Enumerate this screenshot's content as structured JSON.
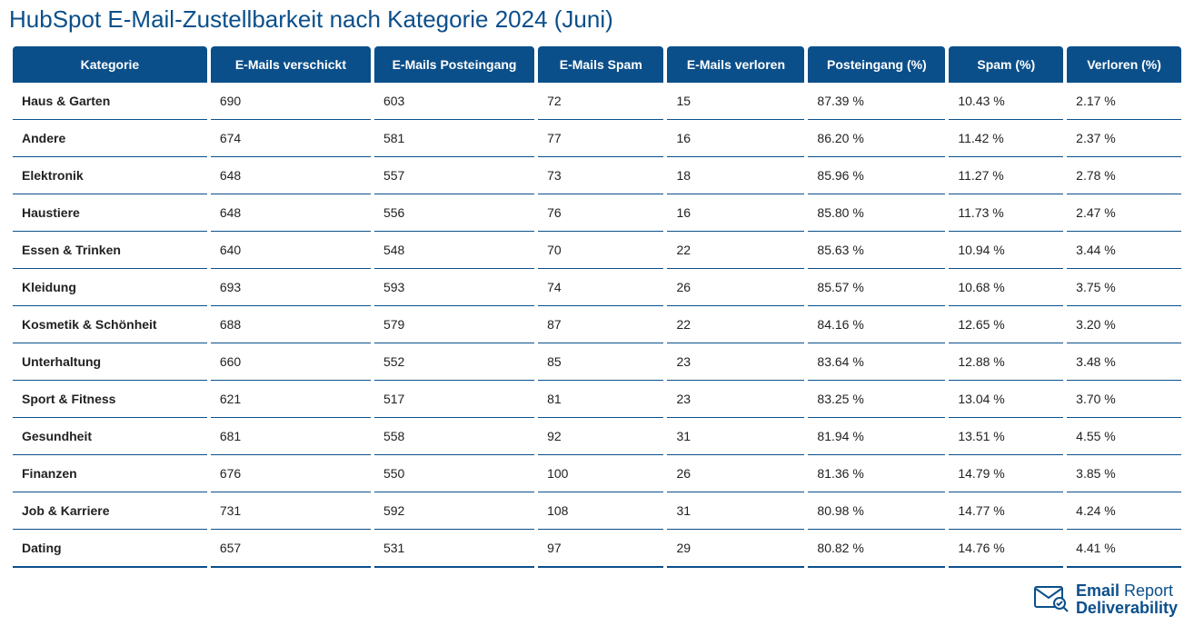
{
  "title": "HubSpot E-Mail-Zustellbarkeit nach Kategorie 2024 (Juni)",
  "colors": {
    "header_bg": "#0b4f8a",
    "header_text": "#ffffff",
    "title_text": "#0b4f8a",
    "cell_text": "#222222",
    "row_border": "#0b4f8a",
    "background": "#ffffff"
  },
  "font_sizes": {
    "title": 26,
    "header": 14,
    "cell": 14,
    "logo": 18
  },
  "columns": [
    "Kategorie",
    "E-Mails verschickt",
    "E-Mails Posteingang",
    "E-Mails Spam",
    "E-Mails verloren",
    "Posteingang (%)",
    "Spam (%)",
    "Verloren (%)"
  ],
  "column_widths_pct": [
    17,
    14,
    14,
    11,
    12,
    12,
    10,
    10
  ],
  "rows": [
    {
      "category": "Haus & Garten",
      "sent": "690",
      "inbox": "603",
      "spam": "72",
      "lost": "15",
      "pin": "87.39 %",
      "psp": "10.43 %",
      "pls": "2.17 %"
    },
    {
      "category": "Andere",
      "sent": "674",
      "inbox": "581",
      "spam": "77",
      "lost": "16",
      "pin": "86.20 %",
      "psp": "11.42 %",
      "pls": "2.37 %"
    },
    {
      "category": "Elektronik",
      "sent": "648",
      "inbox": "557",
      "spam": "73",
      "lost": "18",
      "pin": "85.96 %",
      "psp": "11.27 %",
      "pls": "2.78 %"
    },
    {
      "category": "Haustiere",
      "sent": "648",
      "inbox": "556",
      "spam": "76",
      "lost": "16",
      "pin": "85.80 %",
      "psp": "11.73 %",
      "pls": "2.47 %"
    },
    {
      "category": "Essen & Trinken",
      "sent": "640",
      "inbox": "548",
      "spam": "70",
      "lost": "22",
      "pin": "85.63 %",
      "psp": "10.94 %",
      "pls": "3.44 %"
    },
    {
      "category": "Kleidung",
      "sent": "693",
      "inbox": "593",
      "spam": "74",
      "lost": "26",
      "pin": "85.57 %",
      "psp": "10.68 %",
      "pls": "3.75 %"
    },
    {
      "category": "Kosmetik & Schönheit",
      "sent": "688",
      "inbox": "579",
      "spam": "87",
      "lost": "22",
      "pin": "84.16 %",
      "psp": "12.65 %",
      "pls": "3.20 %"
    },
    {
      "category": "Unterhaltung",
      "sent": "660",
      "inbox": "552",
      "spam": "85",
      "lost": "23",
      "pin": "83.64 %",
      "psp": "12.88 %",
      "pls": "3.48 %"
    },
    {
      "category": "Sport & Fitness",
      "sent": "621",
      "inbox": "517",
      "spam": "81",
      "lost": "23",
      "pin": "83.25 %",
      "psp": "13.04 %",
      "pls": "3.70 %"
    },
    {
      "category": "Gesundheit",
      "sent": "681",
      "inbox": "558",
      "spam": "92",
      "lost": "31",
      "pin": "81.94 %",
      "psp": "13.51 %",
      "pls": "4.55 %"
    },
    {
      "category": "Finanzen",
      "sent": "676",
      "inbox": "550",
      "spam": "100",
      "lost": "26",
      "pin": "81.36 %",
      "psp": "14.79 %",
      "pls": "3.85 %"
    },
    {
      "category": "Job & Karriere",
      "sent": "731",
      "inbox": "592",
      "spam": "108",
      "lost": "31",
      "pin": "80.98 %",
      "psp": "14.77 %",
      "pls": "4.24 %"
    },
    {
      "category": "Dating",
      "sent": "657",
      "inbox": "531",
      "spam": "97",
      "lost": "29",
      "pin": "80.82 %",
      "psp": "14.76 %",
      "pls": "4.41 %"
    }
  ],
  "logo": {
    "line1a": "Email",
    "line1b": "Report",
    "line2": "Deliverability",
    "icon_color": "#0b4f8a"
  }
}
